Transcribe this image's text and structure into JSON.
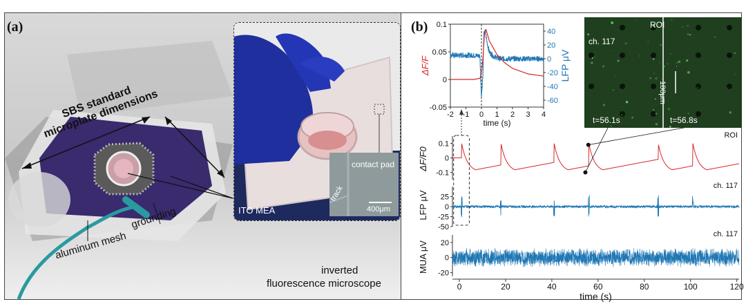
{
  "panel_a": {
    "label": "(a)",
    "sbs_line1": "SBS standard",
    "sbs_line2": "microplate dimensions",
    "aluminum_mesh": "aluminum mesh",
    "grounding": "grounding",
    "inverted_line1": "inverted",
    "inverted_line2": "fluorescence microscope",
    "ito_mea": "ITO MEA",
    "contact_pad": "contact pad",
    "track": "track",
    "scale_400": "400μm"
  },
  "panel_b": {
    "label": "(b)",
    "roi_image": {
      "roi": "ROI",
      "ch": "ch. 117",
      "scale": "180μm",
      "t_left": "t=56.1s",
      "t_right": "t=56.8s"
    }
  },
  "chart_data": [
    {
      "type": "line",
      "title": "",
      "xlabel": "time (s)",
      "ylabel": "ΔF/F",
      "ylabel_right": "LFP μV",
      "xlim": [
        -2,
        4
      ],
      "ylim": [
        -0.05,
        0.1
      ],
      "ylim_right": [
        -70,
        50
      ],
      "x_ticks": [
        -2,
        -1,
        0,
        1,
        2,
        3,
        4
      ],
      "y_ticks": [
        -0.05,
        0,
        0.05,
        0.1
      ],
      "y_ticks_right": [
        -60,
        -40,
        -20,
        0,
        20,
        40
      ],
      "series": [
        {
          "name": "",
          "axis": "left",
          "color": "#d62728",
          "x": [
            -2,
            -1,
            -0.5,
            -0.1,
            0,
            0.1,
            0.2,
            0.3,
            0.5,
            1,
            1.5,
            2,
            3,
            4
          ],
          "y": [
            0,
            0,
            0,
            0.002,
            0.01,
            0.04,
            0.085,
            0.09,
            0.07,
            0.045,
            0.03,
            0.02,
            0.01,
            0.006
          ]
        },
        {
          "name": "",
          "axis": "right",
          "color": "#1f77b4",
          "x": [
            -2,
            -1,
            -0.5,
            -0.1,
            0,
            0.1,
            0.15,
            0.25,
            0.35,
            0.5,
            0.8,
            1.2,
            2,
            3,
            4
          ],
          "y": [
            5,
            5,
            5,
            4,
            -55,
            -20,
            35,
            40,
            25,
            10,
            3,
            0,
            0,
            0,
            0
          ]
        }
      ]
    },
    {
      "type": "line",
      "ylabel": "ΔF/F0",
      "trace_label": "ROI",
      "ylim": [
        -0.15,
        0.15
      ],
      "y_ticks": [
        -0.1,
        0,
        0.1
      ],
      "xlim": [
        -3,
        121
      ],
      "spike_times": [
        1,
        18,
        41,
        56,
        86,
        101
      ],
      "spike_amplitude": 0.1,
      "baseline": -0.1,
      "color": "#d62728"
    },
    {
      "type": "line",
      "ylabel": "LFP μV",
      "trace_label": "ch. 117",
      "ylim": [
        -50,
        50
      ],
      "y_ticks": [
        -50,
        -25,
        0,
        25
      ],
      "xlim": [
        -3,
        121
      ],
      "spike_times": [
        1,
        18,
        41,
        56,
        86,
        101
      ],
      "color": "#1f77b4"
    },
    {
      "type": "line",
      "ylabel": "MUA μV",
      "trace_label": "ch. 117",
      "ylim": [
        -25,
        30
      ],
      "y_ticks": [
        -20,
        0,
        20
      ],
      "xlim": [
        -3,
        121
      ],
      "x_ticks": [
        0,
        20,
        40,
        60,
        80,
        100,
        120
      ],
      "xlabel": "time (s)",
      "noise_amplitude": 12,
      "color": "#1f77b4"
    }
  ]
}
